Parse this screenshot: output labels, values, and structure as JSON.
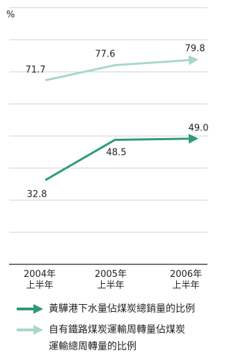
{
  "chart_data": {
    "type": "line",
    "unit_label": "%",
    "categories": [
      [
        "2004年",
        "上半年"
      ],
      [
        "2005年",
        "上半年"
      ],
      [
        "2006年",
        "上半年"
      ]
    ],
    "ylim": [
      0,
      100
    ],
    "grid": true,
    "legend_position": "bottom",
    "series": [
      {
        "name": "黃驊港下水量佔煤炭總銷量的比例",
        "values": [
          32.8,
          48.5,
          49.0
        ],
        "labels": [
          "32.8",
          "48.5",
          "49.0"
        ],
        "color": "#2f9b73"
      },
      {
        "name": "自有鐵路煤炭運輸周轉量佔煤炭運輸總周轉量的比例",
        "values": [
          71.7,
          77.6,
          79.8
        ],
        "labels": [
          "71.7",
          "77.6",
          "79.8"
        ],
        "color": "#a9d8c4"
      }
    ]
  },
  "legend": {
    "series_1_line1": "黃驊港下水量佔煤炭總銷量的比例",
    "series_2_line1": "自有鐵路煤炭運輸周轉量佔煤炭",
    "series_2_line2": "運輸總周轉量的比例"
  }
}
